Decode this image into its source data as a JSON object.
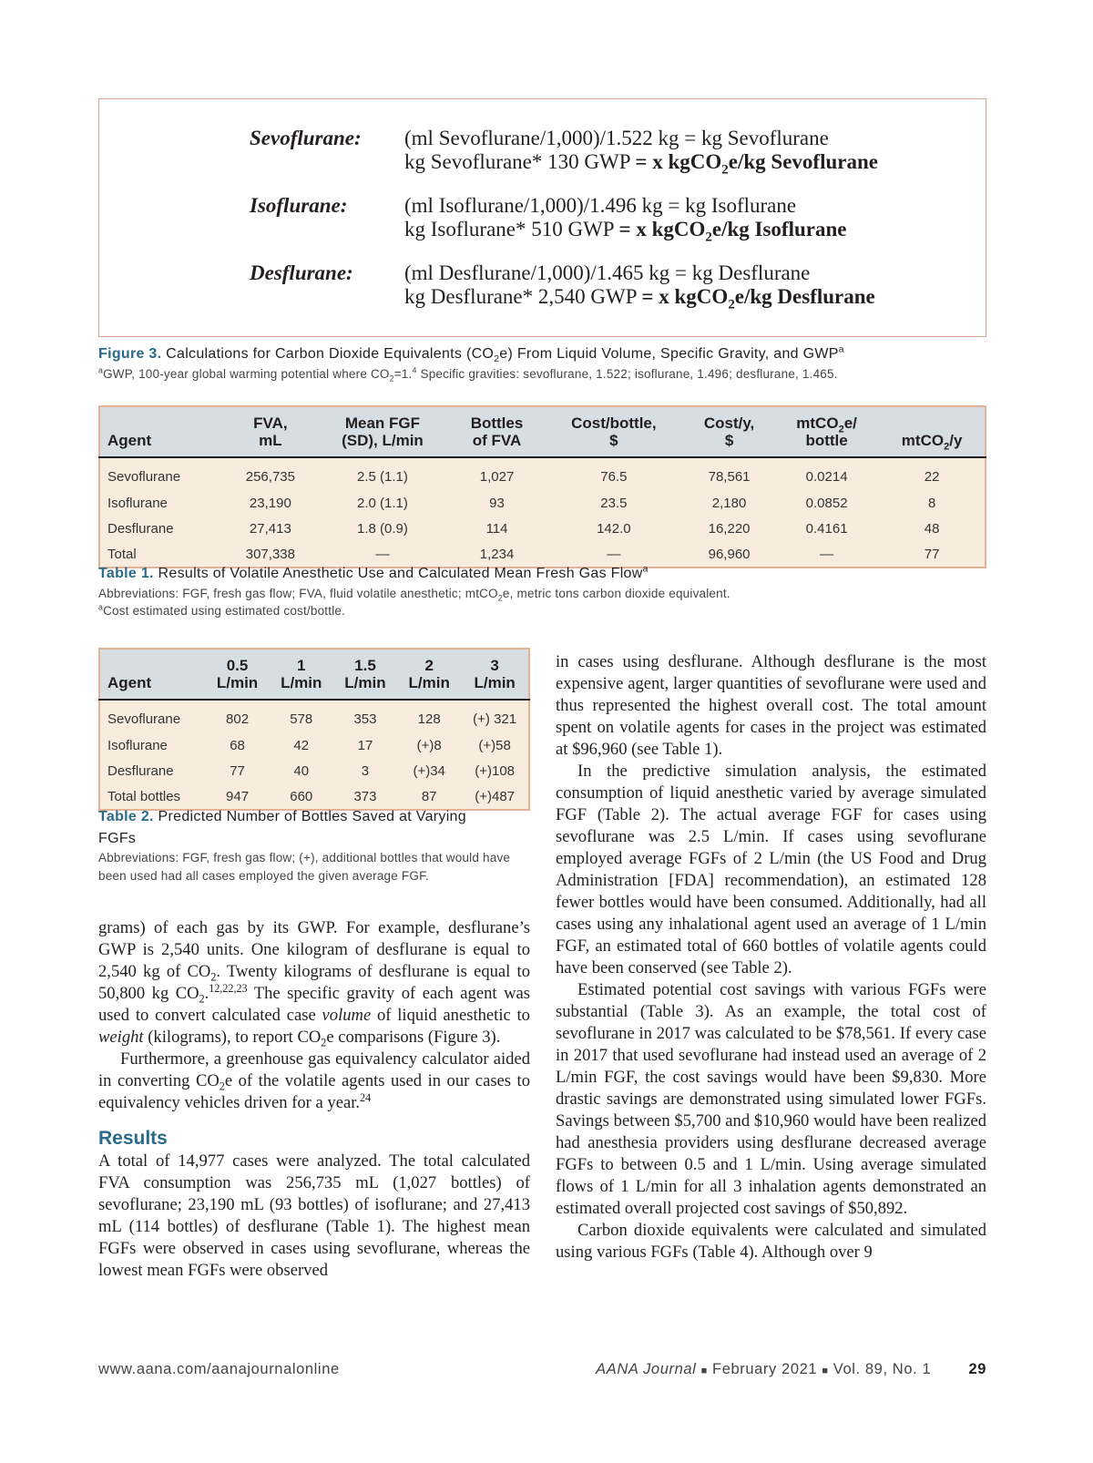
{
  "figure3": {
    "rows": [
      {
        "name": "Sevoflurane:",
        "line1": [
          {
            "t": "(ml Sevoflurane/1,000)/1.522 kg = kg Sevoflurane"
          }
        ],
        "line2": [
          {
            "t": "kg Sevoflurane* 130 GWP "
          },
          {
            "t": "= x kgCO",
            "s": "b"
          },
          {
            "t": "2",
            "s": "bsub"
          },
          {
            "t": "e/kg Sevoflurane",
            "s": "b"
          }
        ]
      },
      {
        "name": "Isoflurane:",
        "line1": [
          {
            "t": "(ml Isoflurane/1,000)/1.496 kg = kg Isoflurane"
          }
        ],
        "line2": [
          {
            "t": "kg Isoflurane* 510 GWP "
          },
          {
            "t": "= x kgCO",
            "s": "b"
          },
          {
            "t": "2",
            "s": "bsub"
          },
          {
            "t": "e/kg Isoflurane",
            "s": "b"
          }
        ]
      },
      {
        "name": "Desflurane:",
        "line1": [
          {
            "t": "(ml Desflurane/1,000)/1.465 kg = kg Desflurane"
          }
        ],
        "line2": [
          {
            "t": "kg Desflurane* 2,540 GWP "
          },
          {
            "t": "= x kgCO",
            "s": "b"
          },
          {
            "t": "2",
            "s": "bsub"
          },
          {
            "t": "e/kg Desflurane",
            "s": "b"
          }
        ]
      }
    ],
    "caption_label": "Figure 3.",
    "caption": [
      {
        "t": " Calculations for Carbon Dioxide Equivalents (CO"
      },
      {
        "t": "2",
        "s": "sub"
      },
      {
        "t": "e) From Liquid Volume, Specific Gravity, and GWP"
      },
      {
        "t": "a",
        "s": "sup"
      }
    ],
    "note": [
      {
        "t": "a",
        "s": "sup"
      },
      {
        "t": "GWP, 100-year global warming potential where CO"
      },
      {
        "t": "2",
        "s": "sub"
      },
      {
        "t": "=1."
      },
      {
        "t": "4",
        "s": "sup"
      },
      {
        "t": " Specific gravities: sevoflurane, 1.522; isoflurane, 1.496; desflurane, 1.465."
      }
    ]
  },
  "table1": {
    "headers": [
      [
        {
          "t": "Agent"
        }
      ],
      [
        {
          "t": "FVA,"
        },
        {
          "br": 1
        },
        {
          "t": "mL"
        }
      ],
      [
        {
          "t": "Mean FGF"
        },
        {
          "br": 1
        },
        {
          "t": "(SD), L/min"
        }
      ],
      [
        {
          "t": "Bottles"
        },
        {
          "br": 1
        },
        {
          "t": "of FVA"
        }
      ],
      [
        {
          "t": "Cost/bottle,"
        },
        {
          "br": 1
        },
        {
          "t": "$"
        }
      ],
      [
        {
          "t": "Cost/y,"
        },
        {
          "br": 1
        },
        {
          "t": "$"
        }
      ],
      [
        {
          "t": "mtCO"
        },
        {
          "t": "2",
          "s": "sub"
        },
        {
          "t": "e/"
        },
        {
          "br": 1
        },
        {
          "t": "bottle"
        }
      ],
      [
        {
          "t": "mtCO"
        },
        {
          "t": "2",
          "s": "sub"
        },
        {
          "t": "/y"
        }
      ]
    ],
    "rows": [
      [
        "Sevoflurane",
        "256,735",
        "2.5 (1.1)",
        "1,027",
        "76.5",
        "78,561",
        "0.0214",
        "22"
      ],
      [
        "Isoflurane",
        "23,190",
        "2.0 (1.1)",
        "93",
        "23.5",
        "2,180",
        "0.0852",
        "8"
      ],
      [
        "Desflurane",
        "27,413",
        "1.8 (0.9)",
        "114",
        "142.0",
        "16,220",
        "0.4161",
        "48"
      ],
      [
        "Total",
        "307,338",
        "—",
        "1,234",
        "—",
        "96,960",
        "—",
        "77"
      ]
    ],
    "caption_label": "Table 1.",
    "caption": [
      {
        "t": " Results of Volatile Anesthetic Use and Calculated Mean Fresh Gas Flow"
      },
      {
        "t": "a",
        "s": "sup"
      }
    ],
    "note1": [
      {
        "t": "Abbreviations: FGF, fresh gas flow; FVA, fluid volatile anesthetic; mtCO"
      },
      {
        "t": "2",
        "s": "sub"
      },
      {
        "t": "e, metric tons carbon dioxide equivalent."
      }
    ],
    "note2": [
      {
        "t": "a",
        "s": "sup"
      },
      {
        "t": "Cost estimated using estimated cost/bottle."
      }
    ]
  },
  "table2": {
    "headers": [
      [
        {
          "t": "Agent"
        }
      ],
      [
        {
          "t": "0.5"
        },
        {
          "br": 1
        },
        {
          "t": "L/min"
        }
      ],
      [
        {
          "t": "1"
        },
        {
          "br": 1
        },
        {
          "t": "L/min"
        }
      ],
      [
        {
          "t": "1.5"
        },
        {
          "br": 1
        },
        {
          "t": "L/min"
        }
      ],
      [
        {
          "t": "2"
        },
        {
          "br": 1
        },
        {
          "t": "L/min"
        }
      ],
      [
        {
          "t": "3"
        },
        {
          "br": 1
        },
        {
          "t": "L/min"
        }
      ]
    ],
    "rows": [
      [
        "Sevoflurane",
        "802",
        "578",
        "353",
        "128",
        "(+) 321"
      ],
      [
        "Isoflurane",
        "68",
        "42",
        "17",
        "(+)8",
        "(+)58"
      ],
      [
        "Desflurane",
        "77",
        "40",
        "3",
        "(+)34",
        "(+)108"
      ],
      [
        "Total bottles",
        "947",
        "660",
        "373",
        "87",
        "(+)487"
      ]
    ],
    "caption_label": "Table 2.",
    "caption": [
      {
        "t": " Predicted Number of Bottles Saved at Varying FGFs"
      }
    ],
    "note": [
      {
        "t": "Abbreviations: FGF, fresh gas flow; (+), additional bottles that would have been used had all cases employed the given average FGF."
      }
    ]
  },
  "left_column": {
    "paragraphs": [
      [
        {
          "t": "grams) of each gas by its GWP. For example, desflurane’s GWP is 2,540 units. One kilogram of desflurane is equal to 2,540 kg of CO"
        },
        {
          "t": "2",
          "s": "sub"
        },
        {
          "t": ". Twenty kilograms of desflurane is equal to 50,800 kg CO"
        },
        {
          "t": "2",
          "s": "sub"
        },
        {
          "t": "."
        },
        {
          "t": "12,22,23",
          "s": "sup"
        },
        {
          "t": " The specific gravity of each agent was used to convert calculated case "
        },
        {
          "t": "volume",
          "s": "i"
        },
        {
          "t": " of liquid anesthetic to "
        },
        {
          "t": "weight",
          "s": "i"
        },
        {
          "t": " (kilograms), to report CO"
        },
        {
          "t": "2",
          "s": "sub"
        },
        {
          "t": "e comparisons (Figure 3)."
        }
      ],
      [
        {
          "t": "Furthermore, a greenhouse gas equivalency calculator aided in converting CO"
        },
        {
          "t": "2",
          "s": "sub"
        },
        {
          "t": "e of the volatile agents used in our cases to equivalency vehicles driven for a year."
        },
        {
          "t": "24",
          "s": "sup"
        }
      ]
    ],
    "results_heading": "Results",
    "results_paragraph": [
      {
        "t": "A total of 14,977 cases were analyzed. The total calculated FVA consumption was 256,735 mL (1,027 bottles) of sevoflurane; 23,190 mL (93 bottles) of isoflurane; and 27,413 mL (114 bottles) of desflurane (Table 1). The highest mean FGFs were observed in cases using sevoflurane, whereas the lowest mean FGFs were observed"
      }
    ]
  },
  "right_column": {
    "paragraphs": [
      [
        {
          "t": "in cases using desflurane. Although desflurane is the most expensive agent, larger quantities of sevoflurane were used and thus represented the highest overall cost. The total amount spent on volatile agents for cases in the project was estimated at $96,960 (see Table 1)."
        }
      ],
      [
        {
          "t": "In the predictive simulation analysis, the estimated consumption of liquid anesthetic varied by average simulated FGF (Table 2). The actual average FGF for cases using sevoflurane was 2.5 L/min. If cases using sevoflurane employed average FGFs of 2 L/min (the US Food and Drug Administration [FDA] recommendation), an estimated 128 fewer bottles would have been consumed. Additionally, had all cases using any inhalational agent used an average of 1 L/min FGF, an estimated total of 660 bottles of volatile agents could have been conserved (see Table 2)."
        }
      ],
      [
        {
          "t": "Estimated potential cost savings with various FGFs were substantial (Table 3). As an example, the total cost of sevoflurane in 2017 was calculated to be $78,561. If every case in 2017 that used sevoflurane had instead used an average of 2 L/min FGF, the cost savings would have been $9,830. More drastic savings are demonstrated using simulated lower FGFs. Savings between $5,700 and $10,960 would have been realized had anesthesia providers using desflurane decreased average FGFs to between 0.5 and 1 L/min. Using average simulated flows of 1 L/min for all 3 inhalation agents demonstrated an estimated overall projected cost savings of $50,892."
        }
      ],
      [
        {
          "t": "Carbon dioxide equivalents were calculated and simulated using various FGFs (Table 4). Although over 9"
        }
      ]
    ]
  },
  "footer": {
    "url": "www.aana.com/aanajournalonline",
    "journal": "AANA Journal",
    "issue_sep": "■",
    "date": "February 2021",
    "volume": "Vol. 89, No. 1",
    "page": "29"
  },
  "colors": {
    "caption_blue": "#2a6a8a",
    "table_header": "#d6dde3",
    "table_body": "#f7ecdd",
    "table_border": "#e2b397"
  }
}
